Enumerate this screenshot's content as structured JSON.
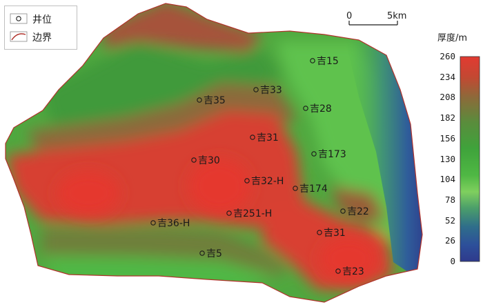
{
  "legend": {
    "well_label": "井位",
    "boundary_label": "边界"
  },
  "scale_bar": {
    "start_label": "0",
    "end_label": "5km"
  },
  "colorbar": {
    "title": "厚度/m",
    "ticks": [
      "260",
      "234",
      "208",
      "182",
      "156",
      "130",
      "104",
      "78",
      "52",
      "26",
      "0"
    ],
    "colors": [
      "#e23a31",
      "#c34832",
      "#8c6a3a",
      "#5a8c3c",
      "#3fa33b",
      "#4fb844",
      "#7fcf5e",
      "#4b9e6a",
      "#2f6e8a",
      "#2d4f9a",
      "#2e3a8c"
    ]
  },
  "wells": [
    {
      "name": "吉15"
    },
    {
      "name": "吉33"
    },
    {
      "name": "吉35"
    },
    {
      "name": "吉28"
    },
    {
      "name": "吉31"
    },
    {
      "name": "吉173"
    },
    {
      "name": "吉30"
    },
    {
      "name": "吉32-H"
    },
    {
      "name": "吉174"
    },
    {
      "name": "吉251-H"
    },
    {
      "name": "吉22"
    },
    {
      "name": "吉36-H"
    },
    {
      "name": "吉31"
    },
    {
      "name": "吉5"
    },
    {
      "name": "吉23"
    }
  ]
}
